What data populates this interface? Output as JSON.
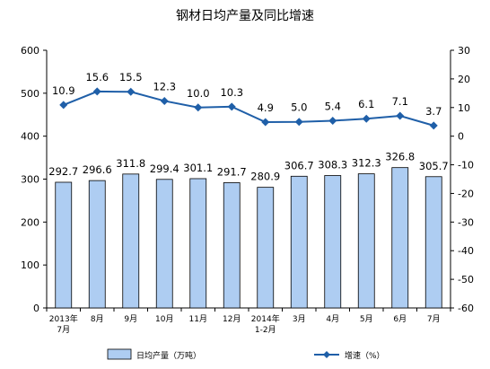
{
  "chart_data": {
    "type": "bar",
    "title": "钢材日均产量及同比增速",
    "categories": [
      [
        "2013年",
        "7月"
      ],
      [
        "8月"
      ],
      [
        "9月"
      ],
      [
        "10月"
      ],
      [
        "11月"
      ],
      [
        "12月"
      ],
      [
        "2014年",
        "1-2月"
      ],
      [
        "3月"
      ],
      [
        "4月"
      ],
      [
        "5月"
      ],
      [
        "6月"
      ],
      [
        "7月"
      ]
    ],
    "series": [
      {
        "name": "日均产量（万吨）",
        "type": "bar",
        "axis": "left",
        "color": "#aecdf2",
        "values": [
          292.7,
          296.6,
          311.8,
          299.4,
          301.1,
          291.7,
          280.9,
          306.7,
          308.3,
          312.3,
          326.8,
          305.7
        ],
        "labels": [
          "292.7",
          "296.6",
          "311.8",
          "299.4",
          "301.1",
          "291.7",
          "280.9",
          "306.7",
          "308.3",
          "312.3",
          "326.8",
          "305.7"
        ]
      },
      {
        "name": "增速（%）",
        "type": "line",
        "axis": "right",
        "color": "#1f5fa8",
        "marker": "diamond",
        "values": [
          10.9,
          15.6,
          15.5,
          12.3,
          10.0,
          10.3,
          4.9,
          5.0,
          5.4,
          6.1,
          7.1,
          3.7
        ],
        "labels": [
          "10.9",
          "15.6",
          "15.5",
          "12.3",
          "10.0",
          "10.3",
          "4.9",
          "5.0",
          "5.4",
          "6.1",
          "7.1",
          "3.7"
        ]
      }
    ],
    "left_axis": {
      "ylim": [
        0,
        600
      ],
      "ticks": [
        "0",
        "100",
        "200",
        "300",
        "400",
        "500",
        "600"
      ]
    },
    "right_axis": {
      "ylim": [
        -60,
        30
      ],
      "ticks": [
        "-60",
        "-50",
        "-40",
        "-30",
        "-20",
        "-10",
        "0",
        "10",
        "20",
        "30"
      ]
    },
    "grid": false,
    "legend_position": "bottom"
  }
}
